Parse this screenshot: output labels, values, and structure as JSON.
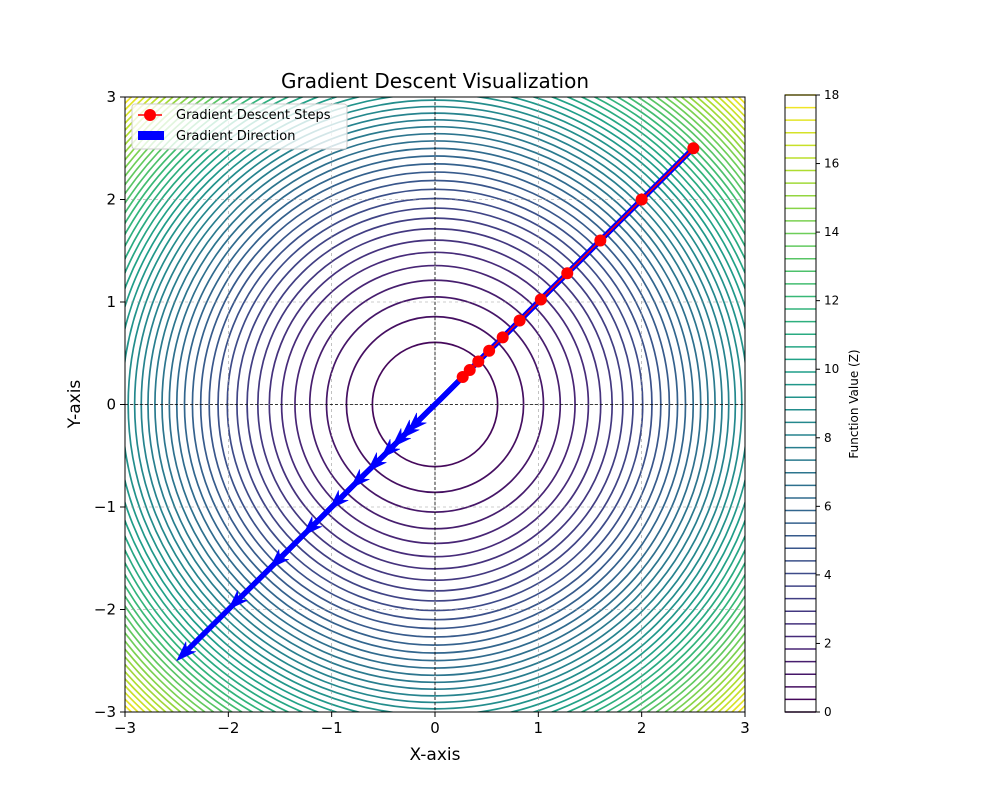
{
  "chart_data": {
    "type": "contour",
    "title": "Gradient Descent Visualization",
    "xlabel": "X-axis",
    "ylabel": "Y-axis",
    "xlim": [
      -3,
      3
    ],
    "ylim": [
      -3,
      3
    ],
    "x_ticks": [
      -3,
      -2,
      -1,
      0,
      1,
      2,
      3
    ],
    "y_ticks": [
      -3,
      -2,
      -1,
      0,
      1,
      2,
      3
    ],
    "x_tick_labels": [
      "−3",
      "−2",
      "−1",
      "0",
      "1",
      "2",
      "3"
    ],
    "y_tick_labels": [
      "−3",
      "−2",
      "−1",
      "0",
      "1",
      "2",
      "3"
    ],
    "grid": true,
    "function": "x^2 + y^2",
    "contour_levels": {
      "min": 0,
      "max": 18,
      "count": 50
    },
    "colormap": "viridis",
    "colorbar": {
      "label": "Function Value (Z)",
      "ticks": [
        0,
        2,
        4,
        6,
        8,
        10,
        12,
        14,
        16,
        18
      ],
      "tick_labels": [
        "0",
        "2",
        "4",
        "6",
        "8",
        "10",
        "12",
        "14",
        "16",
        "18"
      ]
    },
    "series": [
      {
        "name": "Gradient Descent Steps",
        "type": "line-marker",
        "color": "#ff0000",
        "x": [
          2.5,
          2.0,
          1.6,
          1.28,
          1.024,
          0.819,
          0.655,
          0.524,
          0.419,
          0.336,
          0.268
        ],
        "y": [
          2.5,
          2.0,
          1.6,
          1.28,
          1.024,
          0.819,
          0.655,
          0.524,
          0.419,
          0.336,
          0.268
        ]
      },
      {
        "name": "Gradient Direction",
        "type": "quiver",
        "color": "#0000ff",
        "x": [
          2.5,
          2.0,
          1.6,
          1.28,
          1.024,
          0.819,
          0.655,
          0.524,
          0.419,
          0.336,
          0.268
        ],
        "y": [
          2.5,
          2.0,
          1.6,
          1.28,
          1.024,
          0.819,
          0.655,
          0.524,
          0.419,
          0.336,
          0.268
        ],
        "u": [
          -5.0,
          -4.0,
          -3.2,
          -2.56,
          -2.048,
          -1.638,
          -1.31,
          -1.048,
          -0.838,
          -0.672,
          -0.536
        ],
        "v": [
          -5.0,
          -4.0,
          -3.2,
          -2.56,
          -2.048,
          -1.638,
          -1.31,
          -1.048,
          -0.838,
          -0.672,
          -0.536
        ]
      }
    ],
    "legend": {
      "position": "upper-left",
      "entries": [
        "Gradient Descent Steps",
        "Gradient Direction"
      ]
    }
  }
}
